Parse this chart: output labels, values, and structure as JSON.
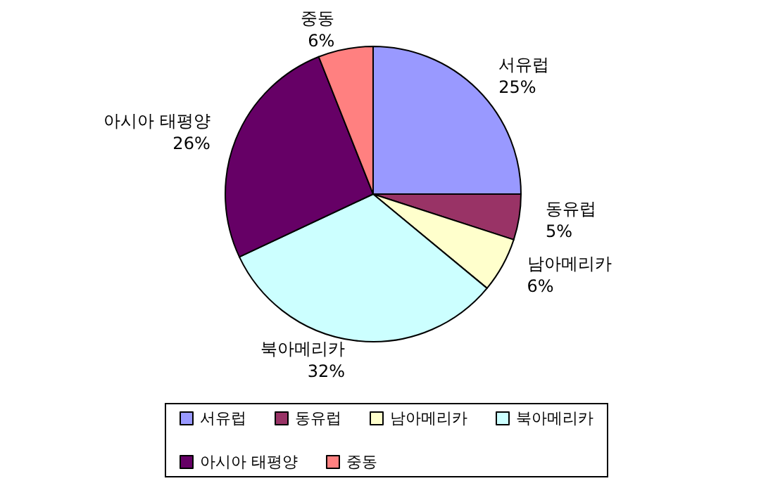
{
  "chart_data": {
    "type": "pie",
    "categories": [
      "서유럽",
      "동유럽",
      "남아메리카",
      "북아메리카",
      "아시아 태평양",
      "중동"
    ],
    "values": [
      25,
      5,
      6,
      32,
      26,
      6
    ],
    "colors": [
      "#9999ff",
      "#993366",
      "#ffffcc",
      "#ccffff",
      "#660066",
      "#ff8080"
    ],
    "value_labels": [
      "25%",
      "5%",
      "6%",
      "32%",
      "26%",
      "6%"
    ],
    "legend": "bottom"
  }
}
